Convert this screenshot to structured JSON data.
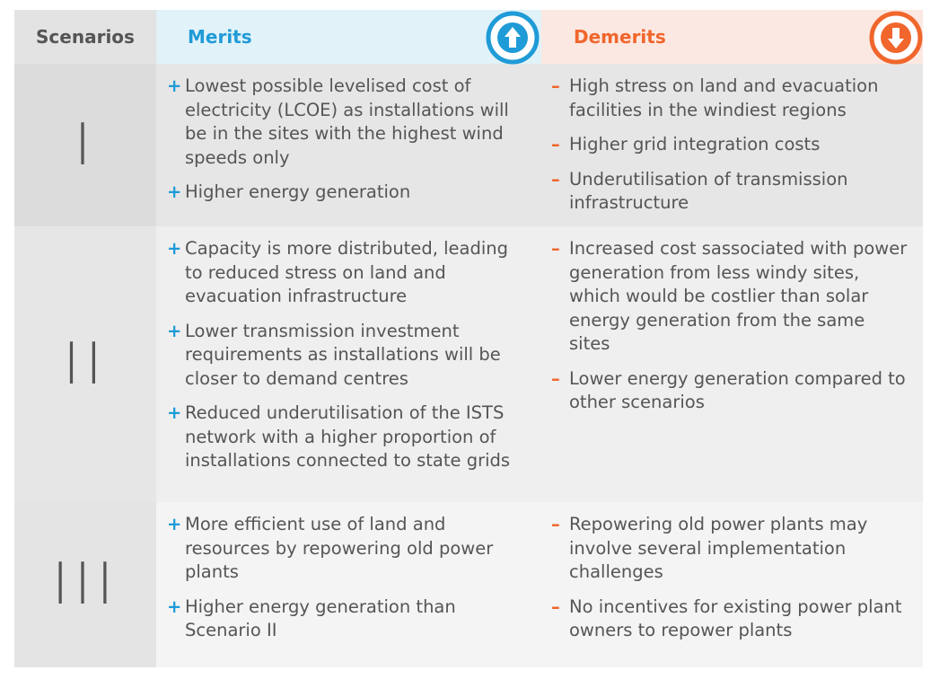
{
  "header": {
    "scenarios": "Scenarios",
    "merits": "Merits",
    "demerits": "Demerits"
  },
  "markers": {
    "merits": "+",
    "demerits": "–"
  },
  "rows": [
    {
      "scenario": "I",
      "merits": [
        "Lowest possible levelised cost of electricity (LCOE) as installations will be in the sites with the highest wind speeds only",
        "Higher energy generation"
      ],
      "demerits": [
        "High stress on land and evacuation facilities in the windiest regions",
        "Higher grid integration costs",
        "Underutilisation of transmission infrastructure"
      ]
    },
    {
      "scenario": "II",
      "merits": [
        "Capacity is more distributed, leading to reduced stress on land and evacuation infrastructure",
        "Lower transmission investment requirements as installations will be closer to demand centres",
        "Reduced underutilisation of the ISTS network with a higher proportion of installations connected to state grids"
      ],
      "demerits": [
        "Increased cost sassociated with power generation from less windy sites, which would be costlier than solar energy generation from the same sites",
        "Lower energy generation compared to other scenarios"
      ]
    },
    {
      "scenario": "III",
      "merits": [
        "More efficient use of land and resources by repowering old power plants",
        "Higher energy generation than Scenario II"
      ],
      "demerits": [
        "Repowering old power plants may involve several implementation challenges",
        "No incentives for existing power plant owners to repower plants"
      ]
    }
  ]
}
